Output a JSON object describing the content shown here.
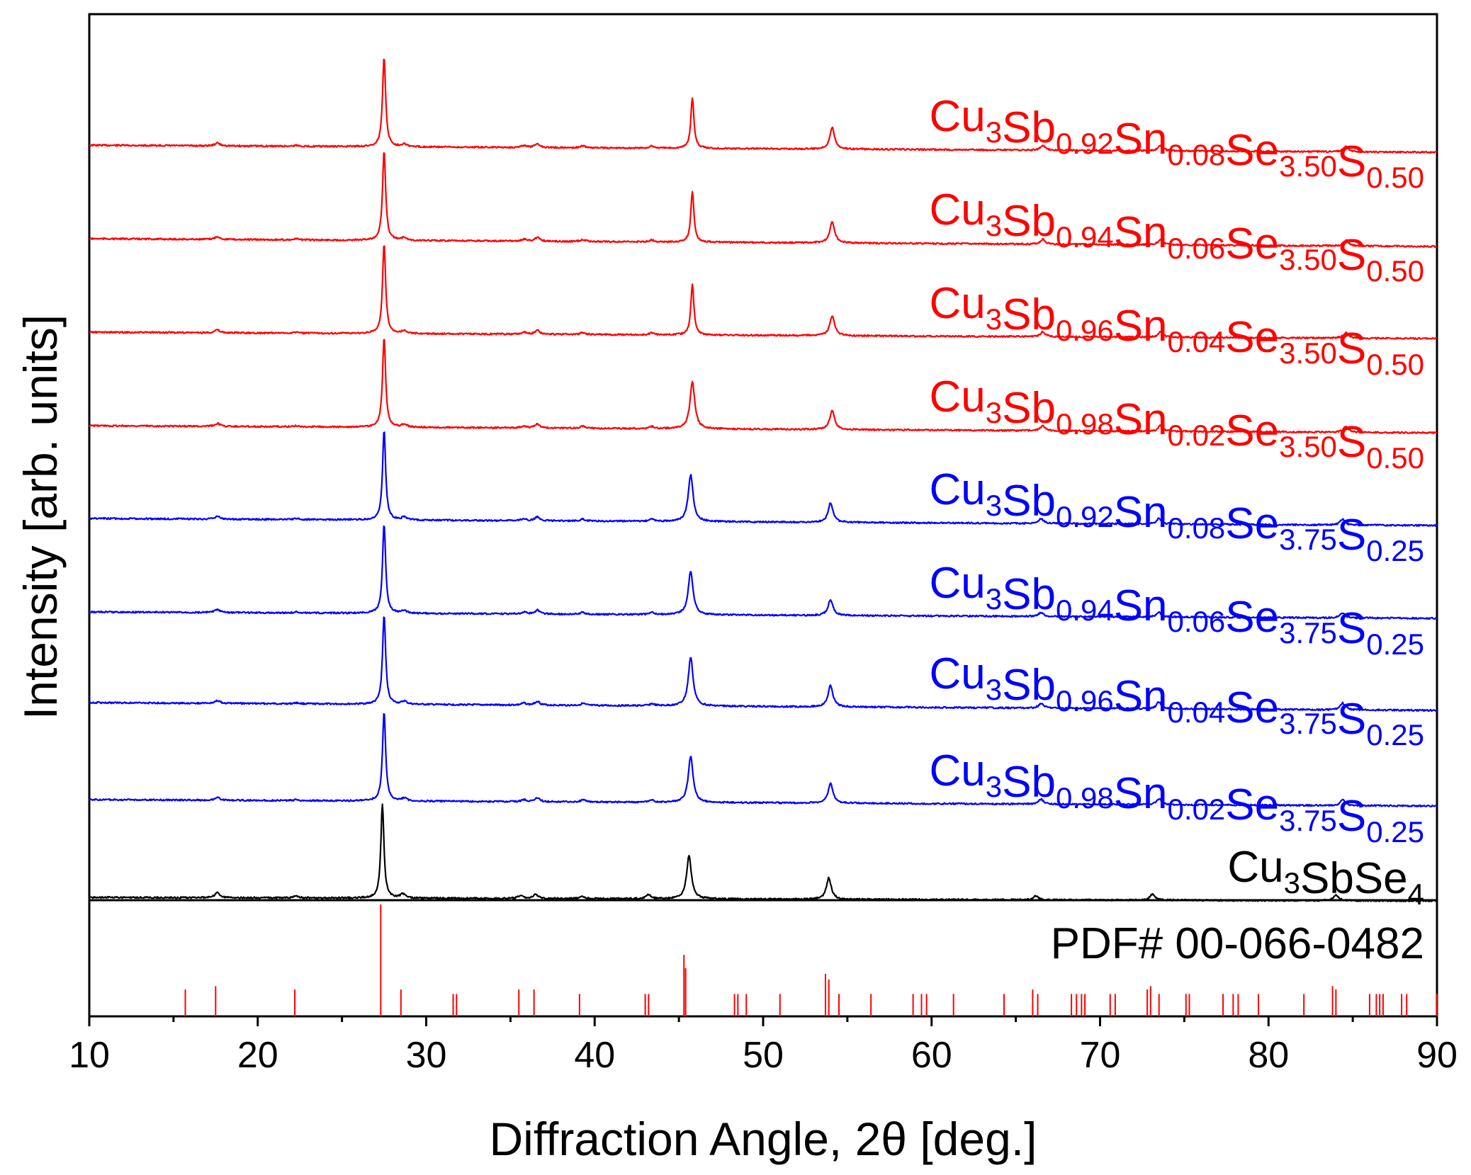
{
  "chart_data": {
    "type": "line",
    "title": "",
    "xlabel": "Diffraction Angle, 2θ [deg.]",
    "ylabel": "Intensity [arb. units]",
    "xlim": [
      10,
      90
    ],
    "xticks": [
      10,
      20,
      30,
      40,
      50,
      60,
      70,
      80,
      90
    ],
    "xtick_labels": [
      "10",
      "20",
      "30",
      "40",
      "50",
      "60",
      "70",
      "80",
      "90"
    ],
    "grid": false,
    "legend": "inline labels at right of each trace",
    "colors": {
      "red": "#ff0000",
      "blue": "#0000ff",
      "black": "#000000"
    },
    "series": [
      {
        "name": "Cu3Sb0.92Sn0.08Se3.50S0.50",
        "color": "#ff0000",
        "label_parts": [
          {
            "t": "Cu",
            "sub": false
          },
          {
            "t": "3",
            "sub": true
          },
          {
            "t": "Sb",
            "sub": false
          },
          {
            "t": "0.92",
            "sub": true
          },
          {
            "t": "Sn",
            "sub": false
          },
          {
            "t": "0.08",
            "sub": true
          },
          {
            "t": "Se",
            "sub": false
          },
          {
            "t": "3.50",
            "sub": true
          },
          {
            "t": "S",
            "sub": false
          },
          {
            "t": "0.50",
            "sub": true
          }
        ],
        "peaks": [
          [
            17.6,
            0.03
          ],
          [
            22.3,
            0.01
          ],
          [
            27.5,
            0.92
          ],
          [
            28.7,
            0.03
          ],
          [
            35.8,
            0.02
          ],
          [
            36.6,
            0.04
          ],
          [
            39.3,
            0.02
          ],
          [
            43.4,
            0.02
          ],
          [
            45.8,
            0.52
          ],
          [
            54.1,
            0.22
          ],
          [
            66.6,
            0.05
          ],
          [
            73.6,
            0.06
          ],
          [
            84.6,
            0.06
          ]
        ]
      },
      {
        "name": "Cu3Sb0.94Sn0.06Se3.50S0.50",
        "color": "#ff0000",
        "label_parts": [
          {
            "t": "Cu",
            "sub": false
          },
          {
            "t": "3",
            "sub": true
          },
          {
            "t": "Sb",
            "sub": false
          },
          {
            "t": "0.94",
            "sub": true
          },
          {
            "t": "Sn",
            "sub": false
          },
          {
            "t": "0.06",
            "sub": true
          },
          {
            "t": "Se",
            "sub": false
          },
          {
            "t": "3.50",
            "sub": true
          },
          {
            "t": "S",
            "sub": false
          },
          {
            "t": "0.50",
            "sub": true
          }
        ],
        "peaks": [
          [
            17.6,
            0.03
          ],
          [
            22.3,
            0.01
          ],
          [
            27.5,
            0.92
          ],
          [
            28.7,
            0.03
          ],
          [
            35.8,
            0.02
          ],
          [
            36.6,
            0.04
          ],
          [
            39.3,
            0.02
          ],
          [
            43.4,
            0.02
          ],
          [
            45.8,
            0.52
          ],
          [
            54.1,
            0.22
          ],
          [
            66.6,
            0.05
          ],
          [
            73.6,
            0.06
          ],
          [
            84.6,
            0.06
          ]
        ]
      },
      {
        "name": "Cu3Sb0.96Sn0.04Se3.50S0.50",
        "color": "#ff0000",
        "label_parts": [
          {
            "t": "Cu",
            "sub": false
          },
          {
            "t": "3",
            "sub": true
          },
          {
            "t": "Sb",
            "sub": false
          },
          {
            "t": "0.96",
            "sub": true
          },
          {
            "t": "Sn",
            "sub": false
          },
          {
            "t": "0.04",
            "sub": true
          },
          {
            "t": "Se",
            "sub": false
          },
          {
            "t": "3.50",
            "sub": true
          },
          {
            "t": "S",
            "sub": false
          },
          {
            "t": "0.50",
            "sub": true
          }
        ],
        "peaks": [
          [
            17.6,
            0.03
          ],
          [
            22.3,
            0.01
          ],
          [
            27.5,
            0.92
          ],
          [
            28.7,
            0.03
          ],
          [
            35.8,
            0.02
          ],
          [
            36.6,
            0.04
          ],
          [
            39.3,
            0.02
          ],
          [
            43.4,
            0.02
          ],
          [
            45.8,
            0.52
          ],
          [
            54.1,
            0.2
          ],
          [
            66.6,
            0.05
          ],
          [
            73.6,
            0.06
          ],
          [
            84.6,
            0.06
          ]
        ]
      },
      {
        "name": "Cu3Sb0.98Sn0.02Se3.50S0.50",
        "color": "#ff0000",
        "label_parts": [
          {
            "t": "Cu",
            "sub": false
          },
          {
            "t": "3",
            "sub": true
          },
          {
            "t": "Sb",
            "sub": false
          },
          {
            "t": "0.98",
            "sub": true
          },
          {
            "t": "Sn",
            "sub": false
          },
          {
            "t": "0.02",
            "sub": true
          },
          {
            "t": "Se",
            "sub": false
          },
          {
            "t": "3.50",
            "sub": true
          },
          {
            "t": "S",
            "sub": false
          },
          {
            "t": "0.50",
            "sub": true
          }
        ],
        "peaks": [
          [
            17.6,
            0.03
          ],
          [
            22.3,
            0.01
          ],
          [
            27.5,
            0.92
          ],
          [
            28.7,
            0.03
          ],
          [
            35.8,
            0.02
          ],
          [
            36.6,
            0.04
          ],
          [
            39.3,
            0.02
          ],
          [
            43.4,
            0.02
          ],
          [
            45.8,
            0.48
          ],
          [
            54.1,
            0.2
          ],
          [
            66.6,
            0.05
          ],
          [
            73.6,
            0.06
          ],
          [
            84.6,
            0.06
          ]
        ]
      },
      {
        "name": "Cu3Sb0.92Sn0.08Se3.75S0.25",
        "color": "#0000ff",
        "label_parts": [
          {
            "t": "Cu",
            "sub": false
          },
          {
            "t": "3",
            "sub": true
          },
          {
            "t": "Sb",
            "sub": false
          },
          {
            "t": "0.92",
            "sub": true
          },
          {
            "t": "Sn",
            "sub": false
          },
          {
            "t": "0.08",
            "sub": true
          },
          {
            "t": "Se",
            "sub": false
          },
          {
            "t": "3.75",
            "sub": true
          },
          {
            "t": "S",
            "sub": false
          },
          {
            "t": "0.25",
            "sub": true
          }
        ],
        "peaks": [
          [
            17.6,
            0.03
          ],
          [
            22.3,
            0.01
          ],
          [
            27.5,
            0.92
          ],
          [
            28.7,
            0.03
          ],
          [
            35.8,
            0.02
          ],
          [
            36.6,
            0.04
          ],
          [
            39.3,
            0.02
          ],
          [
            43.4,
            0.02
          ],
          [
            45.7,
            0.48
          ],
          [
            54.0,
            0.2
          ],
          [
            66.5,
            0.05
          ],
          [
            73.5,
            0.06
          ],
          [
            84.4,
            0.06
          ]
        ]
      },
      {
        "name": "Cu3Sb0.94Sn0.06Se3.75S0.25",
        "color": "#0000ff",
        "label_parts": [
          {
            "t": "Cu",
            "sub": false
          },
          {
            "t": "3",
            "sub": true
          },
          {
            "t": "Sb",
            "sub": false
          },
          {
            "t": "0.94",
            "sub": true
          },
          {
            "t": "Sn",
            "sub": false
          },
          {
            "t": "0.06",
            "sub": true
          },
          {
            "t": "Se",
            "sub": false
          },
          {
            "t": "3.75",
            "sub": true
          },
          {
            "t": "S",
            "sub": false
          },
          {
            "t": "0.25",
            "sub": true
          }
        ],
        "peaks": [
          [
            17.6,
            0.03
          ],
          [
            22.3,
            0.01
          ],
          [
            27.5,
            0.92
          ],
          [
            28.7,
            0.03
          ],
          [
            35.8,
            0.02
          ],
          [
            36.6,
            0.04
          ],
          [
            39.3,
            0.02
          ],
          [
            43.4,
            0.02
          ],
          [
            45.7,
            0.45
          ],
          [
            54.0,
            0.16
          ],
          [
            66.5,
            0.04
          ],
          [
            73.5,
            0.05
          ],
          [
            84.4,
            0.05
          ]
        ]
      },
      {
        "name": "Cu3Sb0.96Sn0.04Se3.75S0.25",
        "color": "#0000ff",
        "label_parts": [
          {
            "t": "Cu",
            "sub": false
          },
          {
            "t": "3",
            "sub": true
          },
          {
            "t": "Sb",
            "sub": false
          },
          {
            "t": "0.96",
            "sub": true
          },
          {
            "t": "Sn",
            "sub": false
          },
          {
            "t": "0.04",
            "sub": true
          },
          {
            "t": "Se",
            "sub": false
          },
          {
            "t": "3.75",
            "sub": true
          },
          {
            "t": "S",
            "sub": false
          },
          {
            "t": "0.25",
            "sub": true
          }
        ],
        "peaks": [
          [
            17.6,
            0.03
          ],
          [
            22.3,
            0.01
          ],
          [
            27.5,
            0.92
          ],
          [
            28.7,
            0.03
          ],
          [
            35.8,
            0.02
          ],
          [
            36.6,
            0.04
          ],
          [
            39.3,
            0.02
          ],
          [
            43.4,
            0.02
          ],
          [
            45.7,
            0.5
          ],
          [
            54.0,
            0.22
          ],
          [
            66.5,
            0.05
          ],
          [
            73.5,
            0.07
          ],
          [
            84.4,
            0.07
          ]
        ]
      },
      {
        "name": "Cu3Sb0.98Sn0.02Se3.75S0.25",
        "color": "#0000ff",
        "label_parts": [
          {
            "t": "Cu",
            "sub": false
          },
          {
            "t": "3",
            "sub": true
          },
          {
            "t": "Sb",
            "sub": false
          },
          {
            "t": "0.98",
            "sub": true
          },
          {
            "t": "Sn",
            "sub": false
          },
          {
            "t": "0.02",
            "sub": true
          },
          {
            "t": "Se",
            "sub": false
          },
          {
            "t": "3.75",
            "sub": true
          },
          {
            "t": "S",
            "sub": false
          },
          {
            "t": "0.25",
            "sub": true
          }
        ],
        "peaks": [
          [
            17.6,
            0.03
          ],
          [
            22.3,
            0.01
          ],
          [
            27.5,
            0.92
          ],
          [
            28.7,
            0.03
          ],
          [
            35.8,
            0.02
          ],
          [
            36.6,
            0.04
          ],
          [
            39.3,
            0.02
          ],
          [
            43.4,
            0.02
          ],
          [
            45.7,
            0.47
          ],
          [
            54.0,
            0.2
          ],
          [
            66.5,
            0.05
          ],
          [
            73.5,
            0.06
          ],
          [
            84.4,
            0.06
          ]
        ]
      },
      {
        "name": "Cu3SbSe4",
        "color": "#000000",
        "label_parts": [
          {
            "t": "Cu",
            "sub": false
          },
          {
            "t": "3",
            "sub": true
          },
          {
            "t": "SbSe",
            "sub": false
          },
          {
            "t": "4",
            "sub": true
          }
        ],
        "peaks": [
          [
            17.6,
            0.05
          ],
          [
            22.3,
            0.02
          ],
          [
            27.4,
            0.96
          ],
          [
            28.6,
            0.04
          ],
          [
            35.6,
            0.03
          ],
          [
            36.5,
            0.04
          ],
          [
            39.3,
            0.02
          ],
          [
            43.2,
            0.04
          ],
          [
            45.6,
            0.44
          ],
          [
            53.9,
            0.22
          ],
          [
            66.2,
            0.04
          ],
          [
            73.1,
            0.06
          ],
          [
            84.0,
            0.06
          ]
        ]
      }
    ],
    "reference": {
      "name": "PDF# 00-066-0482",
      "color": "#ff0000",
      "lines": [
        [
          15.7,
          0.24
        ],
        [
          17.5,
          0.27
        ],
        [
          22.2,
          0.24
        ],
        [
          27.3,
          1.0
        ],
        [
          28.5,
          0.24
        ],
        [
          31.6,
          0.2
        ],
        [
          31.8,
          0.2
        ],
        [
          35.5,
          0.24
        ],
        [
          36.4,
          0.24
        ],
        [
          39.1,
          0.2
        ],
        [
          43.0,
          0.2
        ],
        [
          43.2,
          0.2
        ],
        [
          45.3,
          0.55
        ],
        [
          45.4,
          0.43
        ],
        [
          48.3,
          0.2
        ],
        [
          48.5,
          0.2
        ],
        [
          49.0,
          0.2
        ],
        [
          51.0,
          0.2
        ],
        [
          53.7,
          0.38
        ],
        [
          53.9,
          0.33
        ],
        [
          54.5,
          0.2
        ],
        [
          56.4,
          0.2
        ],
        [
          58.9,
          0.2
        ],
        [
          59.4,
          0.2
        ],
        [
          59.7,
          0.2
        ],
        [
          61.3,
          0.2
        ],
        [
          64.3,
          0.2
        ],
        [
          66.0,
          0.24
        ],
        [
          66.3,
          0.2
        ],
        [
          68.3,
          0.2
        ],
        [
          68.6,
          0.2
        ],
        [
          68.9,
          0.2
        ],
        [
          69.1,
          0.2
        ],
        [
          70.6,
          0.2
        ],
        [
          70.9,
          0.2
        ],
        [
          72.8,
          0.24
        ],
        [
          73.0,
          0.27
        ],
        [
          73.5,
          0.2
        ],
        [
          75.1,
          0.2
        ],
        [
          75.3,
          0.2
        ],
        [
          77.3,
          0.2
        ],
        [
          77.9,
          0.2
        ],
        [
          78.2,
          0.2
        ],
        [
          79.4,
          0.2
        ],
        [
          82.1,
          0.2
        ],
        [
          83.8,
          0.27
        ],
        [
          84.0,
          0.24
        ],
        [
          86.0,
          0.2
        ],
        [
          86.4,
          0.2
        ],
        [
          86.6,
          0.2
        ],
        [
          86.8,
          0.2
        ],
        [
          87.9,
          0.2
        ],
        [
          88.2,
          0.2
        ],
        [
          90.0,
          0.2
        ]
      ]
    }
  }
}
